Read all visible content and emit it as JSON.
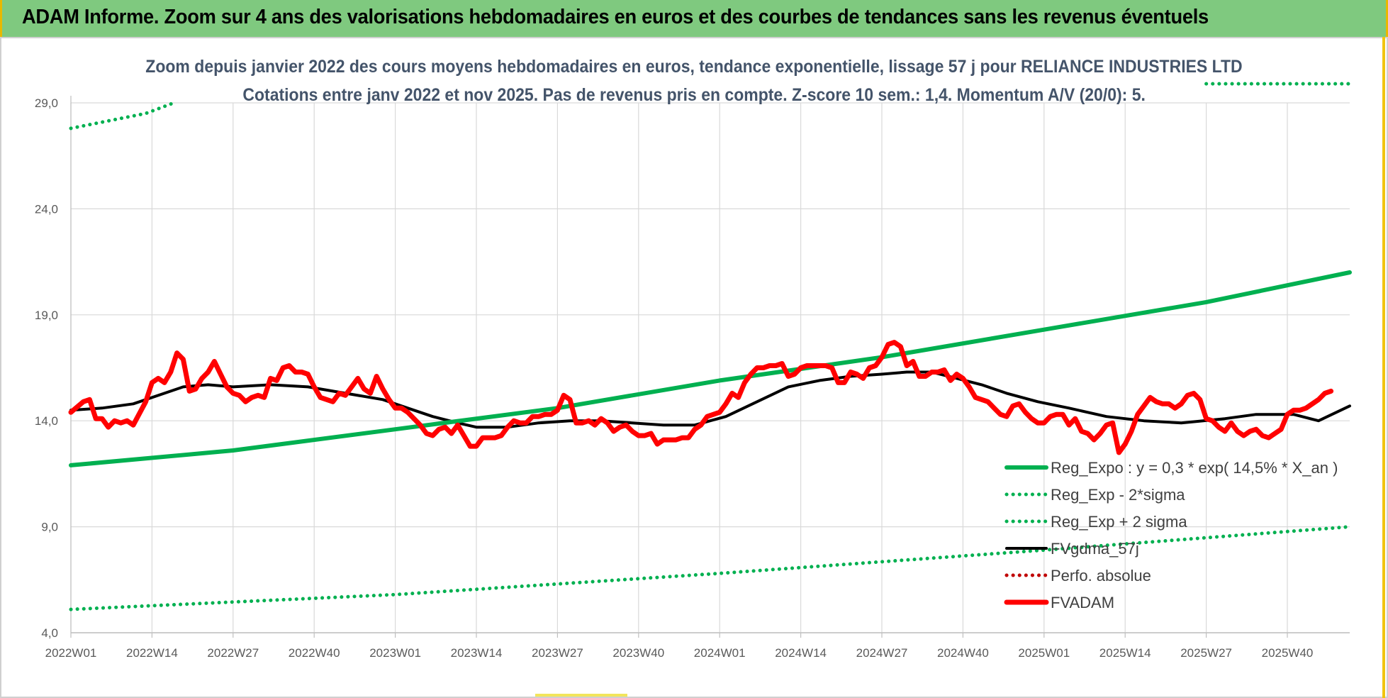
{
  "header": {
    "title": "ADAM Informe. Zoom sur 4 ans des valorisations hebdomadaires en euros et des courbes de tendances sans les revenus éventuels"
  },
  "colors": {
    "banner": "#7fc97f",
    "trend": "#00b050",
    "price": "#ff0000",
    "moving_average": "#000000",
    "subtitle": "#44546a"
  },
  "chart_data": {
    "type": "line",
    "title_line1": "Zoom depuis janvier 2022 des cours moyens hebdomadaires en euros, tendance exponentielle, lissage 57 j pour RELIANCE INDUSTRIES LTD",
    "title_line2": "Cotations entre janv 2022 et nov 2025. Pas de revenus pris en compte. Z-score 10 sem.: 1,4. Momentum A/V (20/0): 5.",
    "ylim": [
      4,
      29
    ],
    "y_ticks": [
      "4,0",
      "9,0",
      "14,0",
      "19,0",
      "24,0",
      "29,0"
    ],
    "x_tick_labels": [
      "2022W01",
      "2022W14",
      "2022W27",
      "2022W40",
      "2023W01",
      "2023W14",
      "2023W27",
      "2023W40",
      "2024W01",
      "2024W14",
      "2024W27",
      "2024W40",
      "2025W01",
      "2025W14",
      "2025W27",
      "2025W40"
    ],
    "n_weeks": 205,
    "grid": true,
    "legend_position": "bottom-right",
    "series": [
      {
        "name": "Reg_Expo : y = 0,3 * exp( 14,5% *  X_an )",
        "style": "solid-thick",
        "color": "#00b050",
        "points": [
          [
            0,
            11.9
          ],
          [
            26,
            12.6
          ],
          [
            52,
            13.6
          ],
          [
            78,
            14.6
          ],
          [
            104,
            15.9
          ],
          [
            130,
            17.0
          ],
          [
            156,
            18.3
          ],
          [
            182,
            19.6
          ],
          [
            205,
            21.0
          ]
        ]
      },
      {
        "name": "Reg_Exp - 2*sigma",
        "style": "dotted",
        "color": "#00b050",
        "points": [
          [
            0,
            5.1
          ],
          [
            52,
            5.8
          ],
          [
            104,
            6.8
          ],
          [
            156,
            7.9
          ],
          [
            205,
            9.0
          ]
        ]
      },
      {
        "name": "Reg_Exp + 2 sigma",
        "style": "dotted",
        "color": "#00b050",
        "points": [
          [
            0,
            27.8
          ],
          [
            12,
            28.5
          ],
          [
            16.5,
            29.0
          ],
          [
            null,
            null
          ],
          [
            182,
            29.9
          ],
          [
            205,
            29.9
          ]
        ]
      },
      {
        "name": "FVgdma_57j",
        "style": "solid",
        "color": "#000000",
        "points": [
          [
            0,
            14.5
          ],
          [
            5,
            14.6
          ],
          [
            10,
            14.8
          ],
          [
            15,
            15.3
          ],
          [
            18,
            15.6
          ],
          [
            22,
            15.7
          ],
          [
            26,
            15.6
          ],
          [
            32,
            15.7
          ],
          [
            38,
            15.6
          ],
          [
            44,
            15.3
          ],
          [
            50,
            15.0
          ],
          [
            54,
            14.6
          ],
          [
            58,
            14.2
          ],
          [
            62,
            13.9
          ],
          [
            65,
            13.7
          ],
          [
            70,
            13.7
          ],
          [
            75,
            13.9
          ],
          [
            80,
            14.0
          ],
          [
            85,
            14.0
          ],
          [
            90,
            13.9
          ],
          [
            95,
            13.8
          ],
          [
            100,
            13.8
          ],
          [
            105,
            14.2
          ],
          [
            110,
            14.9
          ],
          [
            115,
            15.6
          ],
          [
            120,
            15.9
          ],
          [
            125,
            16.1
          ],
          [
            130,
            16.2
          ],
          [
            134,
            16.3
          ],
          [
            138,
            16.3
          ],
          [
            142,
            16.0
          ],
          [
            146,
            15.7
          ],
          [
            150,
            15.3
          ],
          [
            155,
            14.9
          ],
          [
            160,
            14.6
          ],
          [
            166,
            14.2
          ],
          [
            172,
            14.0
          ],
          [
            178,
            13.9
          ],
          [
            185,
            14.1
          ],
          [
            190,
            14.3
          ],
          [
            196,
            14.3
          ],
          [
            200,
            14.0
          ],
          [
            205,
            14.7
          ]
        ]
      },
      {
        "name": "Perfo. absolue",
        "style": "dotted",
        "color": "#c00000",
        "points": []
      },
      {
        "name": "FVADAM",
        "style": "solid-thick",
        "color": "#ff0000",
        "points": [
          [
            0,
            14.4
          ],
          [
            2,
            14.9
          ],
          [
            3,
            15.0
          ],
          [
            4,
            14.1
          ],
          [
            5,
            14.1
          ],
          [
            6,
            13.7
          ],
          [
            7,
            14.0
          ],
          [
            8,
            13.9
          ],
          [
            9,
            14.0
          ],
          [
            10,
            13.8
          ],
          [
            12,
            14.9
          ],
          [
            13,
            15.8
          ],
          [
            14,
            16.0
          ],
          [
            15,
            15.8
          ],
          [
            16,
            16.3
          ],
          [
            17,
            17.2
          ],
          [
            18,
            16.9
          ],
          [
            19,
            15.4
          ],
          [
            20,
            15.5
          ],
          [
            21,
            16.0
          ],
          [
            22,
            16.3
          ],
          [
            23,
            16.8
          ],
          [
            24,
            16.2
          ],
          [
            25,
            15.6
          ],
          [
            26,
            15.3
          ],
          [
            27,
            15.2
          ],
          [
            28,
            14.9
          ],
          [
            29,
            15.1
          ],
          [
            30,
            15.2
          ],
          [
            31,
            15.1
          ],
          [
            32,
            16.0
          ],
          [
            33,
            15.9
          ],
          [
            34,
            16.5
          ],
          [
            35,
            16.6
          ],
          [
            36,
            16.3
          ],
          [
            37,
            16.3
          ],
          [
            38,
            16.2
          ],
          [
            39,
            15.6
          ],
          [
            40,
            15.1
          ],
          [
            41,
            15.0
          ],
          [
            42,
            14.9
          ],
          [
            43,
            15.3
          ],
          [
            44,
            15.2
          ],
          [
            45,
            15.6
          ],
          [
            46,
            16.0
          ],
          [
            47,
            15.5
          ],
          [
            48,
            15.3
          ],
          [
            49,
            16.1
          ],
          [
            50,
            15.5
          ],
          [
            51,
            15.0
          ],
          [
            52,
            14.6
          ],
          [
            53,
            14.6
          ],
          [
            54,
            14.4
          ],
          [
            55,
            14.1
          ],
          [
            56,
            13.8
          ],
          [
            57,
            13.4
          ],
          [
            58,
            13.3
          ],
          [
            59,
            13.6
          ],
          [
            60,
            13.7
          ],
          [
            61,
            13.4
          ],
          [
            62,
            13.8
          ],
          [
            63,
            13.3
          ],
          [
            64,
            12.8
          ],
          [
            65,
            12.8
          ],
          [
            66,
            13.2
          ],
          [
            67,
            13.2
          ],
          [
            68,
            13.2
          ],
          [
            69,
            13.3
          ],
          [
            70,
            13.7
          ],
          [
            71,
            14.0
          ],
          [
            72,
            13.9
          ],
          [
            73,
            13.9
          ],
          [
            74,
            14.2
          ],
          [
            75,
            14.2
          ],
          [
            76,
            14.3
          ],
          [
            77,
            14.3
          ],
          [
            78,
            14.5
          ],
          [
            79,
            15.2
          ],
          [
            80,
            15.0
          ],
          [
            81,
            13.9
          ],
          [
            82,
            13.9
          ],
          [
            83,
            14.0
          ],
          [
            84,
            13.8
          ],
          [
            85,
            14.1
          ],
          [
            86,
            13.9
          ],
          [
            87,
            13.5
          ],
          [
            88,
            13.7
          ],
          [
            89,
            13.8
          ],
          [
            90,
            13.5
          ],
          [
            91,
            13.3
          ],
          [
            92,
            13.3
          ],
          [
            93,
            13.4
          ],
          [
            94,
            12.9
          ],
          [
            95,
            13.1
          ],
          [
            96,
            13.1
          ],
          [
            97,
            13.1
          ],
          [
            98,
            13.2
          ],
          [
            99,
            13.2
          ],
          [
            100,
            13.6
          ],
          [
            101,
            13.8
          ],
          [
            102,
            14.2
          ],
          [
            103,
            14.3
          ],
          [
            104,
            14.4
          ],
          [
            105,
            14.8
          ],
          [
            106,
            15.3
          ],
          [
            107,
            15.1
          ],
          [
            108,
            15.8
          ],
          [
            109,
            16.2
          ],
          [
            110,
            16.5
          ],
          [
            111,
            16.5
          ],
          [
            112,
            16.6
          ],
          [
            113,
            16.6
          ],
          [
            114,
            16.7
          ],
          [
            115,
            16.1
          ],
          [
            116,
            16.2
          ],
          [
            117,
            16.5
          ],
          [
            118,
            16.6
          ],
          [
            119,
            16.6
          ],
          [
            120,
            16.6
          ],
          [
            121,
            16.6
          ],
          [
            122,
            16.5
          ],
          [
            123,
            15.8
          ],
          [
            124,
            15.8
          ],
          [
            125,
            16.3
          ],
          [
            126,
            16.2
          ],
          [
            127,
            16.0
          ],
          [
            128,
            16.5
          ],
          [
            129,
            16.6
          ],
          [
            130,
            17.0
          ],
          [
            131,
            17.6
          ],
          [
            132,
            17.7
          ],
          [
            133,
            17.5
          ],
          [
            134,
            16.6
          ],
          [
            135,
            16.8
          ],
          [
            136,
            16.1
          ],
          [
            137,
            16.1
          ],
          [
            138,
            16.3
          ],
          [
            139,
            16.3
          ],
          [
            140,
            16.4
          ],
          [
            141,
            15.9
          ],
          [
            142,
            16.2
          ],
          [
            143,
            16.0
          ],
          [
            144,
            15.6
          ],
          [
            145,
            15.1
          ],
          [
            146,
            15.0
          ],
          [
            147,
            14.9
          ],
          [
            148,
            14.6
          ],
          [
            149,
            14.3
          ],
          [
            150,
            14.2
          ],
          [
            151,
            14.7
          ],
          [
            152,
            14.8
          ],
          [
            153,
            14.4
          ],
          [
            154,
            14.1
          ],
          [
            155,
            13.9
          ],
          [
            156,
            13.9
          ],
          [
            157,
            14.2
          ],
          [
            158,
            14.3
          ],
          [
            159,
            14.3
          ],
          [
            160,
            13.8
          ],
          [
            161,
            14.1
          ],
          [
            162,
            13.5
          ],
          [
            163,
            13.4
          ],
          [
            164,
            13.1
          ],
          [
            165,
            13.4
          ],
          [
            166,
            13.8
          ],
          [
            167,
            13.9
          ],
          [
            168,
            12.5
          ],
          [
            169,
            12.9
          ],
          [
            170,
            13.5
          ],
          [
            171,
            14.3
          ],
          [
            172,
            14.7
          ],
          [
            173,
            15.1
          ],
          [
            174,
            14.9
          ],
          [
            175,
            14.8
          ],
          [
            176,
            14.8
          ],
          [
            177,
            14.6
          ],
          [
            178,
            14.8
          ],
          [
            179,
            15.2
          ],
          [
            180,
            15.3
          ],
          [
            181,
            15.0
          ],
          [
            182,
            14.1
          ],
          [
            183,
            14.0
          ],
          [
            184,
            13.7
          ],
          [
            185,
            13.5
          ],
          [
            186,
            13.9
          ],
          [
            187,
            13.5
          ],
          [
            188,
            13.3
          ],
          [
            189,
            13.5
          ],
          [
            190,
            13.6
          ],
          [
            191,
            13.3
          ],
          [
            192,
            13.2
          ],
          [
            193,
            13.4
          ],
          [
            194,
            13.6
          ],
          [
            195,
            14.3
          ],
          [
            196,
            14.5
          ],
          [
            197,
            14.5
          ],
          [
            198,
            14.6
          ],
          [
            199,
            14.8
          ],
          [
            200,
            15.0
          ],
          [
            201,
            15.3
          ],
          [
            202,
            15.4
          ]
        ]
      }
    ]
  }
}
